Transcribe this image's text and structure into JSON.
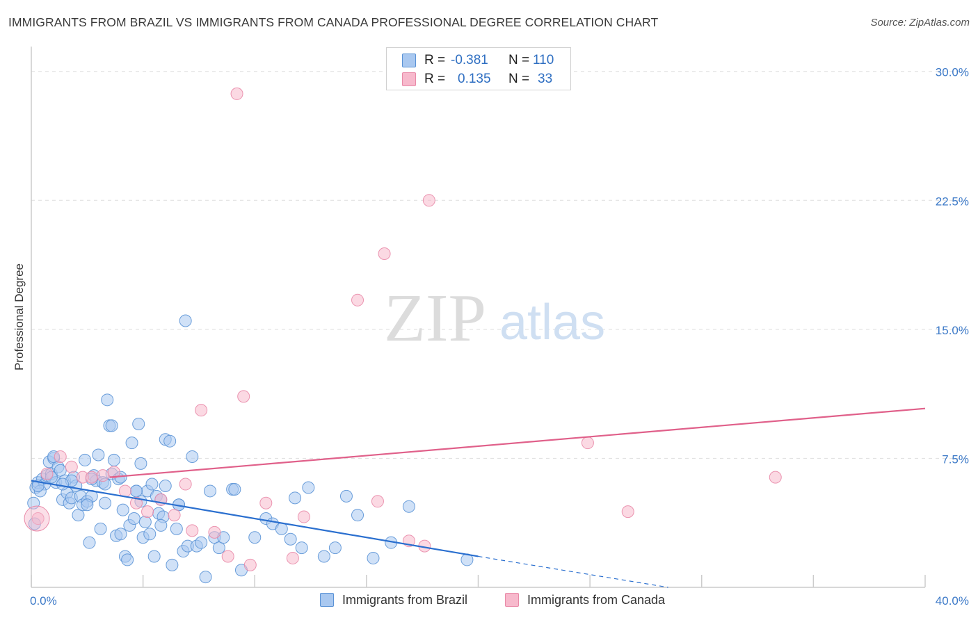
{
  "header": {
    "title": "IMMIGRANTS FROM BRAZIL VS IMMIGRANTS FROM CANADA PROFESSIONAL DEGREE CORRELATION CHART",
    "source": "Source: ZipAtlas.com"
  },
  "watermark": {
    "zip": "ZIP",
    "atlas": "atlas"
  },
  "colors": {
    "brazil_fill": "#a9c8f0",
    "brazil_stroke": "#5b93d6",
    "brazil_line": "#2a6fcf",
    "canada_fill": "#f7b9cc",
    "canada_stroke": "#e98aa8",
    "canada_line": "#e0608a",
    "tick_text": "#3d7ac8",
    "grid": "#dddddd"
  },
  "stats": {
    "brazil": {
      "r_label": "R =",
      "r_value": "-0.381",
      "n_label": "N =",
      "n_value": "110"
    },
    "canada": {
      "r_label": "R =",
      "r_value": "0.135",
      "n_label": "N =",
      "n_value": "33"
    }
  },
  "legend": {
    "brazil": "Immigrants from Brazil",
    "canada": "Immigrants from Canada"
  },
  "chart_data": {
    "type": "scatter",
    "title": "IMMIGRANTS FROM BRAZIL VS IMMIGRANTS FROM CANADA PROFESSIONAL DEGREE CORRELATION CHART",
    "xlabel": "",
    "ylabel": "Professional Degree",
    "xlim": [
      0,
      40
    ],
    "ylim": [
      0,
      31
    ],
    "x_tick_labels": [
      {
        "value": 0,
        "label": "0.0%"
      },
      {
        "value": 40,
        "label": "40.0%"
      }
    ],
    "y_tick_labels": [
      {
        "value": 7.5,
        "label": "7.5%"
      },
      {
        "value": 15.0,
        "label": "15.0%"
      },
      {
        "value": 22.5,
        "label": "22.5%"
      },
      {
        "value": 30.0,
        "label": "30.0%"
      }
    ],
    "grid": true,
    "series": [
      {
        "name": "Immigrants from Brazil",
        "r": -0.381,
        "n": 110,
        "trend": {
          "x0": 0,
          "y0": 6.2,
          "x1": 20,
          "y1": 1.8,
          "dash_x1": 28.5,
          "dash_y1": 0.0
        },
        "points": [
          [
            0.2,
            5.8
          ],
          [
            0.3,
            6.1
          ],
          [
            0.5,
            6.3
          ],
          [
            0.6,
            6.0
          ],
          [
            0.7,
            6.5
          ],
          [
            0.8,
            7.3
          ],
          [
            0.9,
            6.6
          ],
          [
            1.0,
            7.5
          ],
          [
            1.1,
            6.1
          ],
          [
            1.2,
            7.0
          ],
          [
            1.3,
            6.8
          ],
          [
            1.4,
            5.1
          ],
          [
            1.5,
            6.2
          ],
          [
            1.6,
            5.5
          ],
          [
            1.7,
            4.9
          ],
          [
            1.8,
            5.2
          ],
          [
            1.9,
            6.4
          ],
          [
            2.0,
            5.9
          ],
          [
            2.1,
            4.2
          ],
          [
            2.2,
            5.3
          ],
          [
            2.3,
            4.8
          ],
          [
            2.4,
            7.4
          ],
          [
            2.5,
            5.0
          ],
          [
            2.6,
            2.6
          ],
          [
            2.7,
            5.3
          ],
          [
            2.8,
            6.5
          ],
          [
            2.9,
            6.2
          ],
          [
            3.0,
            7.7
          ],
          [
            3.1,
            3.4
          ],
          [
            3.2,
            6.1
          ],
          [
            3.3,
            4.9
          ],
          [
            3.4,
            10.9
          ],
          [
            3.5,
            9.4
          ],
          [
            3.6,
            6.6
          ],
          [
            3.7,
            7.4
          ],
          [
            3.8,
            3.0
          ],
          [
            3.9,
            6.3
          ],
          [
            4.0,
            3.1
          ],
          [
            4.1,
            4.5
          ],
          [
            4.2,
            1.8
          ],
          [
            4.3,
            1.6
          ],
          [
            4.4,
            3.6
          ],
          [
            4.5,
            8.4
          ],
          [
            4.6,
            4.0
          ],
          [
            4.7,
            5.6
          ],
          [
            4.8,
            9.5
          ],
          [
            4.9,
            7.2
          ],
          [
            5.0,
            2.9
          ],
          [
            5.1,
            3.8
          ],
          [
            5.2,
            5.6
          ],
          [
            5.3,
            3.1
          ],
          [
            5.4,
            6.0
          ],
          [
            5.5,
            1.8
          ],
          [
            5.6,
            5.3
          ],
          [
            5.7,
            4.3
          ],
          [
            5.8,
            5.1
          ],
          [
            5.9,
            4.1
          ],
          [
            6.0,
            8.6
          ],
          [
            6.2,
            8.5
          ],
          [
            6.3,
            1.3
          ],
          [
            6.5,
            3.4
          ],
          [
            6.6,
            4.8
          ],
          [
            6.8,
            2.1
          ],
          [
            7.0,
            2.4
          ],
          [
            7.2,
            7.6
          ],
          [
            7.4,
            2.4
          ],
          [
            7.6,
            2.6
          ],
          [
            7.8,
            0.6
          ],
          [
            8.0,
            5.6
          ],
          [
            8.2,
            2.9
          ],
          [
            8.4,
            2.3
          ],
          [
            8.6,
            2.9
          ],
          [
            9.0,
            5.7
          ],
          [
            9.4,
            1.0
          ],
          [
            10.0,
            2.9
          ],
          [
            10.5,
            4.0
          ],
          [
            10.8,
            3.7
          ],
          [
            11.2,
            3.4
          ],
          [
            11.6,
            2.8
          ],
          [
            11.8,
            5.2
          ],
          [
            12.1,
            2.3
          ],
          [
            12.4,
            5.8
          ],
          [
            13.1,
            1.8
          ],
          [
            13.6,
            2.3
          ],
          [
            14.1,
            5.3
          ],
          [
            14.6,
            4.2
          ],
          [
            15.3,
            1.7
          ],
          [
            16.1,
            2.6
          ],
          [
            16.9,
            4.7
          ],
          [
            19.5,
            1.6
          ],
          [
            6.9,
            15.5
          ],
          [
            0.1,
            4.9
          ],
          [
            0.15,
            3.7
          ],
          [
            0.4,
            5.6
          ],
          [
            2.5,
            4.8
          ],
          [
            3.6,
            9.4
          ],
          [
            4.9,
            5.0
          ],
          [
            5.8,
            3.6
          ],
          [
            6.6,
            4.8
          ],
          [
            9.1,
            5.7
          ],
          [
            1.0,
            7.6
          ],
          [
            1.8,
            6.2
          ],
          [
            2.7,
            6.3
          ],
          [
            3.3,
            6.0
          ],
          [
            4.7,
            5.6
          ],
          [
            6.0,
            5.9
          ],
          [
            0.9,
            6.4
          ],
          [
            1.4,
            6.0
          ],
          [
            0.3,
            5.9
          ],
          [
            4.0,
            6.4
          ]
        ]
      },
      {
        "name": "Immigrants from Canada",
        "r": 0.135,
        "n": 33,
        "trend": {
          "x0": 3.5,
          "y0": 6.4,
          "x1": 40,
          "y1": 10.4
        },
        "points": [
          [
            0.3,
            4.0
          ],
          [
            0.7,
            6.6
          ],
          [
            1.3,
            7.6
          ],
          [
            1.8,
            7.0
          ],
          [
            2.3,
            6.4
          ],
          [
            2.7,
            6.4
          ],
          [
            3.2,
            6.5
          ],
          [
            3.7,
            6.7
          ],
          [
            4.2,
            5.6
          ],
          [
            4.7,
            4.9
          ],
          [
            5.2,
            4.4
          ],
          [
            5.8,
            5.1
          ],
          [
            6.4,
            4.2
          ],
          [
            6.9,
            6.0
          ],
          [
            7.2,
            3.3
          ],
          [
            7.6,
            10.3
          ],
          [
            8.2,
            3.2
          ],
          [
            8.8,
            1.8
          ],
          [
            9.2,
            28.7
          ],
          [
            9.5,
            11.1
          ],
          [
            9.8,
            1.3
          ],
          [
            10.5,
            4.9
          ],
          [
            11.7,
            1.7
          ],
          [
            12.2,
            4.1
          ],
          [
            14.6,
            16.7
          ],
          [
            15.5,
            5.0
          ],
          [
            15.8,
            19.4
          ],
          [
            16.9,
            2.7
          ],
          [
            17.6,
            2.4
          ],
          [
            17.8,
            22.5
          ],
          [
            24.9,
            8.4
          ],
          [
            26.7,
            4.4
          ],
          [
            33.3,
            6.4
          ]
        ]
      }
    ]
  }
}
